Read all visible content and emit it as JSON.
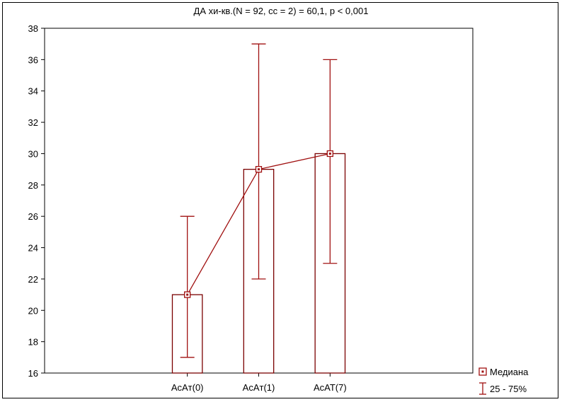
{
  "chart_data": {
    "type": "bar",
    "title": "ДА хи-кв.(N = 92, сс = 2) = 60,1, p < 0,001",
    "categories": [
      "AcAт(0)",
      "AcAт(1)",
      "AcAT(7)"
    ],
    "median": [
      21,
      29,
      30
    ],
    "q25": [
      17,
      22,
      23
    ],
    "q75": [
      26,
      37,
      36
    ],
    "ylim": [
      16,
      38
    ],
    "yticks": [
      16,
      18,
      20,
      22,
      24,
      26,
      28,
      30,
      32,
      34,
      36,
      38
    ],
    "legend": [
      {
        "label": "Медиана",
        "symbol": "square-marker"
      },
      {
        "label": "25 - 75%",
        "symbol": "range-whisker"
      }
    ],
    "legend_position": "bottom-right",
    "colors": {
      "series": "#a01010",
      "bar_edge": "#7a0000"
    },
    "grid": false
  }
}
